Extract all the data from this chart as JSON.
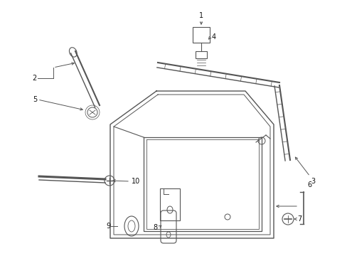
{
  "background_color": "#ffffff",
  "line_color": "#555555",
  "label_color": "#111111",
  "figsize": [
    4.89,
    3.6
  ],
  "dpi": 100,
  "fs": 7.0
}
